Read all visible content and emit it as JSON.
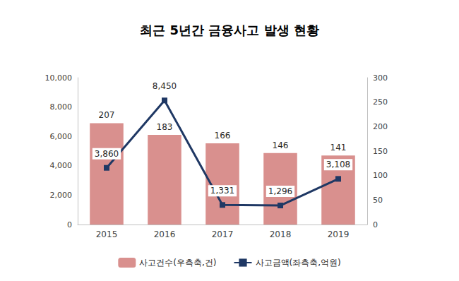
{
  "chart_data": {
    "type": "bar",
    "title": "최근 5년간 금융사고 발생 현황",
    "categories": [
      "2015",
      "2016",
      "2017",
      "2018",
      "2019"
    ],
    "series": [
      {
        "name": "사고건수(우측축,건)",
        "type": "bar",
        "color": "#d9908e",
        "axis": "y2",
        "values": [
          207,
          183,
          166,
          146,
          141
        ]
      },
      {
        "name": "사고금액(좌측축,억원)",
        "type": "line",
        "color": "#1f3864",
        "marker": "square",
        "values": [
          3860,
          8450,
          1331,
          1296,
          3108
        ],
        "value_labels": [
          "3,860",
          "8,450",
          "1,331",
          "1,296",
          "3,108"
        ]
      }
    ],
    "ylim": [
      0,
      10000
    ],
    "yticks": [
      0,
      {
        "value": 2000,
        "label": "2,000"
      },
      {
        "value": 4000,
        "label": "4,000"
      },
      {
        "value": 6000,
        "label": "6,000"
      },
      {
        "value": 8000,
        "label": "8,000"
      },
      {
        "value": 10000,
        "label": "10,000"
      }
    ],
    "y2lim": [
      0,
      300
    ],
    "y2ticks": [
      0,
      50,
      100,
      150,
      200,
      250,
      300
    ],
    "data_labels": true,
    "legend": "bottom",
    "grid": false
  }
}
